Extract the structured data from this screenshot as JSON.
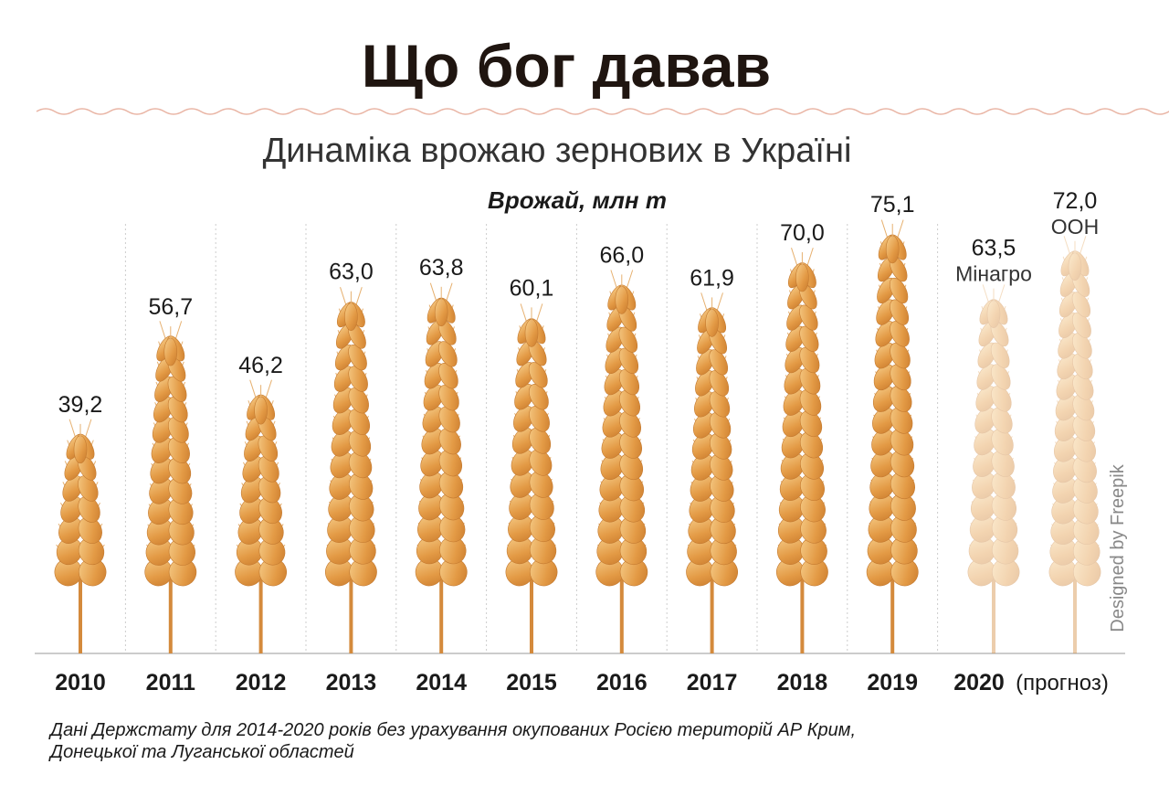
{
  "chart_data": {
    "type": "pictorial-bar",
    "title": "Що бог давав",
    "subtitle": "Динаміка врожаю зернових в Україні",
    "value_axis_label": "Врожай, млн т",
    "categories": [
      "2010",
      "2011",
      "2012",
      "2013",
      "2014",
      "2015",
      "2016",
      "2017",
      "2018",
      "2019"
    ],
    "values": [
      39.2,
      56.7,
      46.2,
      63.0,
      63.8,
      60.1,
      66.0,
      61.9,
      70.0,
      75.1
    ],
    "value_labels": [
      "39,2",
      "56,7",
      "46,2",
      "63,0",
      "63,8",
      "60,1",
      "66,0",
      "61,9",
      "70,0",
      "75,1"
    ],
    "color": "#e39a45",
    "forecast": {
      "category": "2020",
      "label": "(прогноз)",
      "series": [
        {
          "name": "Мінагро",
          "value": 63.5,
          "value_label": "63,5"
        },
        {
          "name": "ООН",
          "value": 72.0,
          "value_label": "72,0"
        }
      ]
    },
    "footnote": [
      "Дані Держстату для 2014-2020 років без урахування окупованих Росією територій АР Крим,",
      "Донецької та Луганської областей"
    ],
    "credit": "Designed by Freepik"
  }
}
